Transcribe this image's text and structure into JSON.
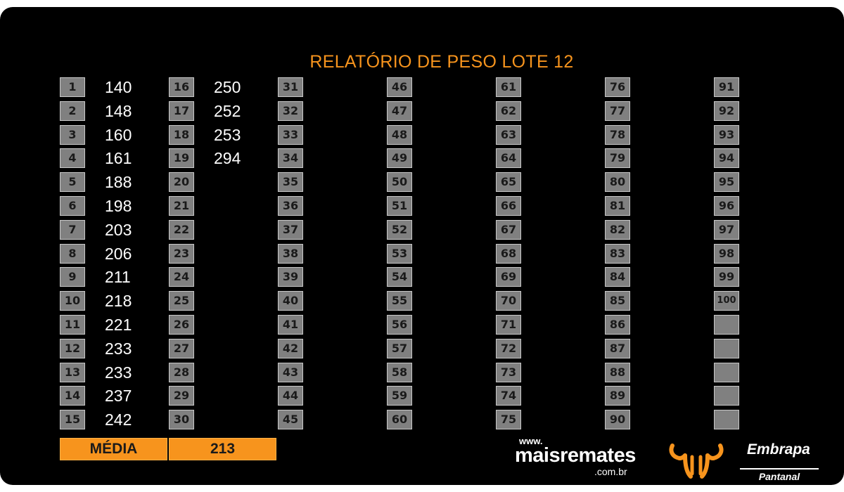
{
  "title": "RELATÓRIO DE PESO LOTE 12",
  "columns": [
    {
      "rows": [
        {
          "num": "1",
          "value": "140"
        },
        {
          "num": "2",
          "value": "148"
        },
        {
          "num": "3",
          "value": "160"
        },
        {
          "num": "4",
          "value": "161"
        },
        {
          "num": "5",
          "value": "188"
        },
        {
          "num": "6",
          "value": "198"
        },
        {
          "num": "7",
          "value": "203"
        },
        {
          "num": "8",
          "value": "206"
        },
        {
          "num": "9",
          "value": "211"
        },
        {
          "num": "10",
          "value": "218"
        },
        {
          "num": "11",
          "value": "221"
        },
        {
          "num": "12",
          "value": "233"
        },
        {
          "num": "13",
          "value": "233"
        },
        {
          "num": "14",
          "value": "237"
        },
        {
          "num": "15",
          "value": "242"
        }
      ]
    },
    {
      "rows": [
        {
          "num": "16",
          "value": "250"
        },
        {
          "num": "17",
          "value": "252"
        },
        {
          "num": "18",
          "value": "253"
        },
        {
          "num": "19",
          "value": "294"
        },
        {
          "num": "20",
          "value": ""
        },
        {
          "num": "21",
          "value": ""
        },
        {
          "num": "22",
          "value": ""
        },
        {
          "num": "23",
          "value": ""
        },
        {
          "num": "24",
          "value": ""
        },
        {
          "num": "25",
          "value": ""
        },
        {
          "num": "26",
          "value": ""
        },
        {
          "num": "27",
          "value": ""
        },
        {
          "num": "28",
          "value": ""
        },
        {
          "num": "29",
          "value": ""
        },
        {
          "num": "30",
          "value": ""
        }
      ]
    },
    {
      "rows": [
        {
          "num": "31",
          "value": ""
        },
        {
          "num": "32",
          "value": ""
        },
        {
          "num": "33",
          "value": ""
        },
        {
          "num": "34",
          "value": ""
        },
        {
          "num": "35",
          "value": ""
        },
        {
          "num": "36",
          "value": ""
        },
        {
          "num": "37",
          "value": ""
        },
        {
          "num": "38",
          "value": ""
        },
        {
          "num": "39",
          "value": ""
        },
        {
          "num": "40",
          "value": ""
        },
        {
          "num": "41",
          "value": ""
        },
        {
          "num": "42",
          "value": ""
        },
        {
          "num": "43",
          "value": ""
        },
        {
          "num": "44",
          "value": ""
        },
        {
          "num": "45",
          "value": ""
        }
      ]
    },
    {
      "rows": [
        {
          "num": "46",
          "value": ""
        },
        {
          "num": "47",
          "value": ""
        },
        {
          "num": "48",
          "value": ""
        },
        {
          "num": "49",
          "value": ""
        },
        {
          "num": "50",
          "value": ""
        },
        {
          "num": "51",
          "value": ""
        },
        {
          "num": "52",
          "value": ""
        },
        {
          "num": "53",
          "value": ""
        },
        {
          "num": "54",
          "value": ""
        },
        {
          "num": "55",
          "value": ""
        },
        {
          "num": "56",
          "value": ""
        },
        {
          "num": "57",
          "value": ""
        },
        {
          "num": "58",
          "value": ""
        },
        {
          "num": "59",
          "value": ""
        },
        {
          "num": "60",
          "value": ""
        }
      ]
    },
    {
      "rows": [
        {
          "num": "61",
          "value": ""
        },
        {
          "num": "62",
          "value": ""
        },
        {
          "num": "63",
          "value": ""
        },
        {
          "num": "64",
          "value": ""
        },
        {
          "num": "65",
          "value": ""
        },
        {
          "num": "66",
          "value": ""
        },
        {
          "num": "67",
          "value": ""
        },
        {
          "num": "68",
          "value": ""
        },
        {
          "num": "69",
          "value": ""
        },
        {
          "num": "70",
          "value": ""
        },
        {
          "num": "71",
          "value": ""
        },
        {
          "num": "72",
          "value": ""
        },
        {
          "num": "73",
          "value": ""
        },
        {
          "num": "74",
          "value": ""
        },
        {
          "num": "75",
          "value": ""
        }
      ]
    },
    {
      "rows": [
        {
          "num": "76",
          "value": ""
        },
        {
          "num": "77",
          "value": ""
        },
        {
          "num": "78",
          "value": ""
        },
        {
          "num": "79",
          "value": ""
        },
        {
          "num": "80",
          "value": ""
        },
        {
          "num": "81",
          "value": ""
        },
        {
          "num": "82",
          "value": ""
        },
        {
          "num": "83",
          "value": ""
        },
        {
          "num": "84",
          "value": ""
        },
        {
          "num": "85",
          "value": ""
        },
        {
          "num": "86",
          "value": ""
        },
        {
          "num": "87",
          "value": ""
        },
        {
          "num": "88",
          "value": ""
        },
        {
          "num": "89",
          "value": ""
        },
        {
          "num": "90",
          "value": ""
        }
      ]
    },
    {
      "rows": [
        {
          "num": "91",
          "value": ""
        },
        {
          "num": "92",
          "value": ""
        },
        {
          "num": "93",
          "value": ""
        },
        {
          "num": "94",
          "value": ""
        },
        {
          "num": "95",
          "value": ""
        },
        {
          "num": "96",
          "value": ""
        },
        {
          "num": "97",
          "value": ""
        },
        {
          "num": "98",
          "value": ""
        },
        {
          "num": "99",
          "value": ""
        },
        {
          "num": "100",
          "value": ""
        },
        {
          "num": "",
          "value": ""
        },
        {
          "num": "",
          "value": ""
        },
        {
          "num": "",
          "value": ""
        },
        {
          "num": "",
          "value": ""
        },
        {
          "num": "",
          "value": ""
        }
      ]
    }
  ],
  "average": {
    "label": "MÉDIA",
    "value": "213"
  },
  "logos": {
    "maisremates": {
      "www": "www.",
      "name": "maisremates",
      "domain": ".com.br"
    },
    "embrapa": {
      "name": "Embrapa",
      "unit": "Pantanal"
    }
  },
  "colors": {
    "accent": "#f7941d",
    "background": "#000000",
    "box": "#808080",
    "text": "#ffffff"
  }
}
